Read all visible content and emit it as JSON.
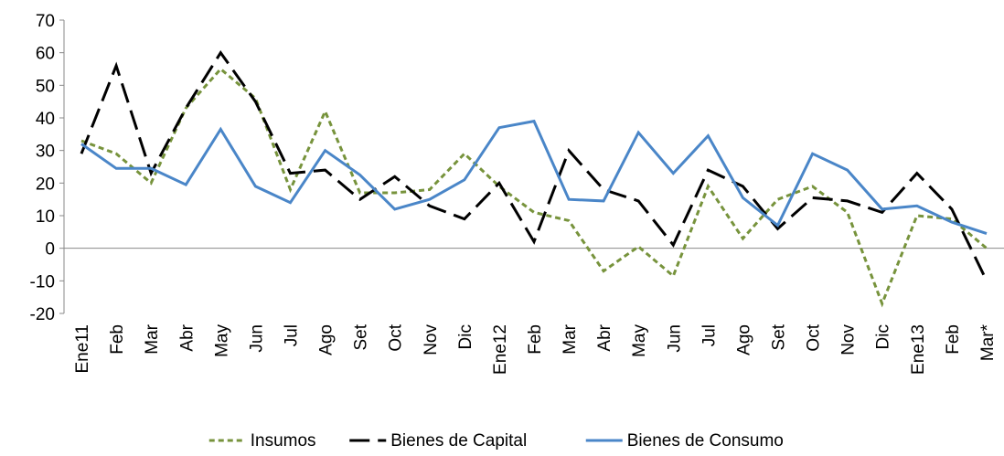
{
  "chart_data": {
    "type": "line",
    "categories": [
      "Ene11",
      "Feb",
      "Mar",
      "Abr",
      "May",
      "Jun",
      "Jul",
      "Ago",
      "Set",
      "Oct",
      "Nov",
      "Dic",
      "Ene12",
      "Feb",
      "Mar",
      "Abr",
      "May",
      "Jun",
      "Jul",
      "Ago",
      "Set",
      "Oct",
      "Nov",
      "Dic",
      "Ene13",
      "Feb",
      "Mar*"
    ],
    "series": [
      {
        "name": "Insumos",
        "color": "#77933c",
        "dash": "6,4",
        "values": [
          33,
          29,
          20,
          43,
          55,
          46,
          18,
          42,
          17,
          17,
          18,
          29,
          19,
          11,
          8.5,
          -7,
          0.5,
          -8.5,
          19,
          3,
          15,
          19,
          11,
          -17,
          10,
          9,
          0
        ]
      },
      {
        "name": "Bienes de Capital",
        "color": "#000000",
        "dash": "22,9",
        "values": [
          29,
          56,
          23,
          43,
          60,
          45,
          23,
          24,
          15,
          22,
          13,
          9,
          20,
          2,
          30,
          18,
          14.5,
          1,
          24,
          19,
          6,
          15.5,
          14.5,
          11,
          23,
          12,
          -10
        ]
      },
      {
        "name": "Bienes de Consumo",
        "color": "#4a86c8",
        "dash": "",
        "values": [
          32,
          24.5,
          24.5,
          19.5,
          36.5,
          19,
          14,
          30,
          22.5,
          12,
          15,
          21,
          37,
          39,
          15,
          14.5,
          35.5,
          23,
          34.5,
          15.5,
          7,
          29,
          24,
          12,
          13,
          8,
          4.5
        ]
      }
    ],
    "ylim": [
      -20,
      70
    ],
    "yticks": [
      -20,
      -10,
      0,
      10,
      20,
      30,
      40,
      50,
      60,
      70
    ],
    "grid": false,
    "legend": "bottom"
  }
}
